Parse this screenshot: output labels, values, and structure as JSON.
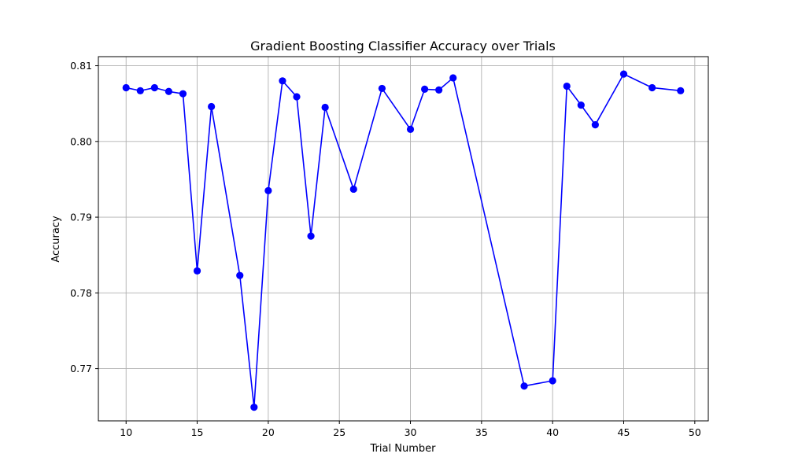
{
  "chart_data": {
    "type": "line",
    "title": "Gradient Boosting Classifier Accuracy over Trials",
    "xlabel": "Trial Number",
    "ylabel": "Accuracy",
    "xlim": [
      8.05,
      50.95
    ],
    "ylim": [
      0.7631,
      0.8112
    ],
    "xticks": [
      10,
      15,
      20,
      25,
      30,
      35,
      40,
      45,
      50
    ],
    "yticks": [
      0.77,
      0.78,
      0.79,
      0.8,
      0.81
    ],
    "xtick_labels": [
      "10",
      "15",
      "20",
      "25",
      "30",
      "35",
      "40",
      "45",
      "50"
    ],
    "ytick_labels": [
      "0.77",
      "0.78",
      "0.79",
      "0.80",
      "0.81"
    ],
    "grid": true,
    "colors": {
      "line": "#0000ff",
      "marker": "#0000ff",
      "grid": "#b0b0b0"
    },
    "series": [
      {
        "x": [
          10,
          11,
          12,
          13,
          14,
          15,
          16,
          18,
          19,
          20,
          21,
          22,
          23,
          24,
          26,
          28,
          30,
          31,
          32,
          33,
          38,
          40,
          41,
          42,
          43,
          45,
          47,
          49
        ],
        "y": [
          0.8071,
          0.8067,
          0.8071,
          0.8066,
          0.8063,
          0.7829,
          0.8046,
          0.7823,
          0.7649,
          0.7935,
          0.808,
          0.8059,
          0.7875,
          0.8045,
          0.7937,
          0.807,
          0.8016,
          0.8069,
          0.8068,
          0.8084,
          0.7677,
          0.7684,
          0.8073,
          0.8048,
          0.8022,
          0.8089,
          0.8071,
          0.8067
        ]
      }
    ]
  }
}
